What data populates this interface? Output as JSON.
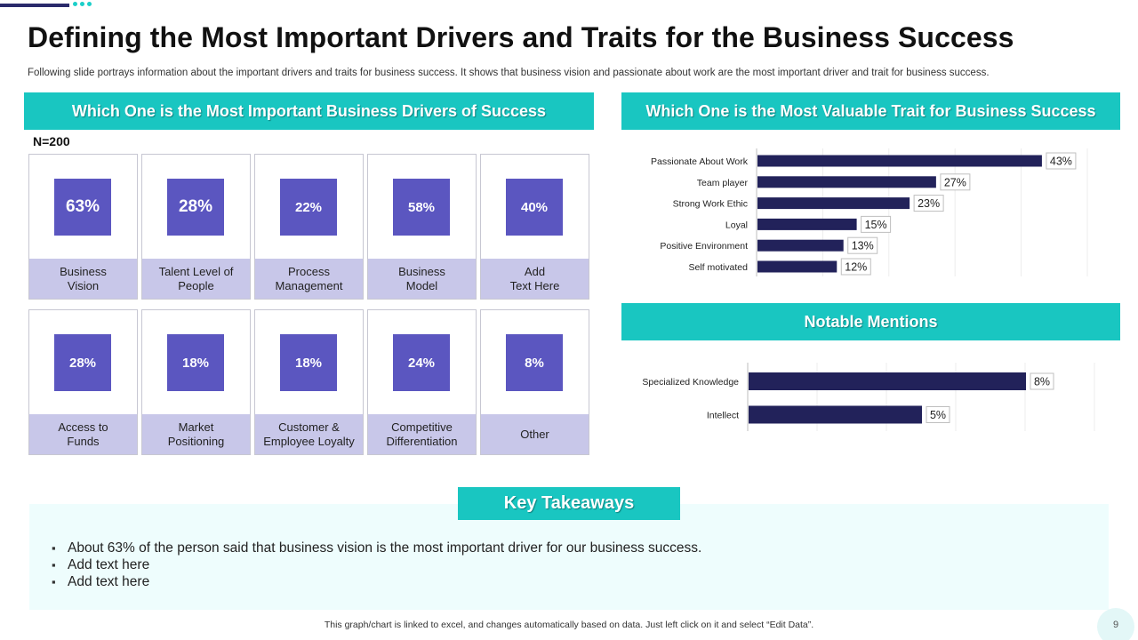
{
  "title": "Defining the Most Important Drivers and Traits for the Business Success",
  "subtitle": "Following slide portrays information about the important drivers and traits for business success. It shows that business vision and passionate about work are the most important driver and trait for  business success.",
  "colors": {
    "accent": "#19c6c1",
    "square": "#5b56c0",
    "label_bg": "#c8c7e9",
    "bar": "#22225a",
    "deco": "#2a2a6b"
  },
  "drivers": {
    "header": "Which One is the Most Important Business Drivers of Success",
    "n_label": "N=200",
    "cards": [
      {
        "value": "63%",
        "label": "Business\nVision"
      },
      {
        "value": "28%",
        "label": "Talent Level  of\nPeople"
      },
      {
        "value": "22%",
        "label": "Process\nManagement"
      },
      {
        "value": "58%",
        "label": "Business\nModel"
      },
      {
        "value": "40%",
        "label": "Add\nText Here"
      },
      {
        "value": "28%",
        "label": "Access to\nFunds"
      },
      {
        "value": "18%",
        "label": "Market\nPositioning"
      },
      {
        "value": "18%",
        "label": "Customer &\nEmployee Loyalty"
      },
      {
        "value": "24%",
        "label": "Competitive\nDifferentiation"
      },
      {
        "value": "8%",
        "label": "Other"
      }
    ]
  },
  "traits": {
    "header": "Which One is the Most Valuable Trait for Business Success"
  },
  "mentions": {
    "header": "Notable Mentions"
  },
  "chart_data": [
    {
      "type": "bar",
      "orientation": "horizontal",
      "title": "Which One is the Most Valuable Trait for Business Success",
      "categories": [
        "Passionate About Work",
        "Team player",
        "Strong Work Ethic",
        "Loyal",
        "Positive Environment",
        "Self motivated"
      ],
      "values": [
        43,
        27,
        23,
        15,
        13,
        12
      ],
      "data_labels": [
        "43%",
        "27%",
        "23%",
        "15%",
        "13%",
        "12%"
      ],
      "xlim": [
        0,
        50
      ],
      "grid": true
    },
    {
      "type": "bar",
      "orientation": "horizontal",
      "title": "Notable Mentions",
      "categories": [
        "Specialized Knowledge",
        "Intellect"
      ],
      "values": [
        8,
        5
      ],
      "data_labels": [
        "8%",
        "5%"
      ],
      "xlim": [
        0,
        10
      ],
      "grid": true
    }
  ],
  "takeaways": {
    "header": "Key Takeaways",
    "items": [
      "About 63% of the person said that business vision is the most important driver for our business success.",
      "Add text here",
      "Add text here"
    ]
  },
  "footer": "This graph/chart is linked to excel, and changes automatically based on data. Just left click on it and select “Edit Data”.",
  "page_number": "9"
}
